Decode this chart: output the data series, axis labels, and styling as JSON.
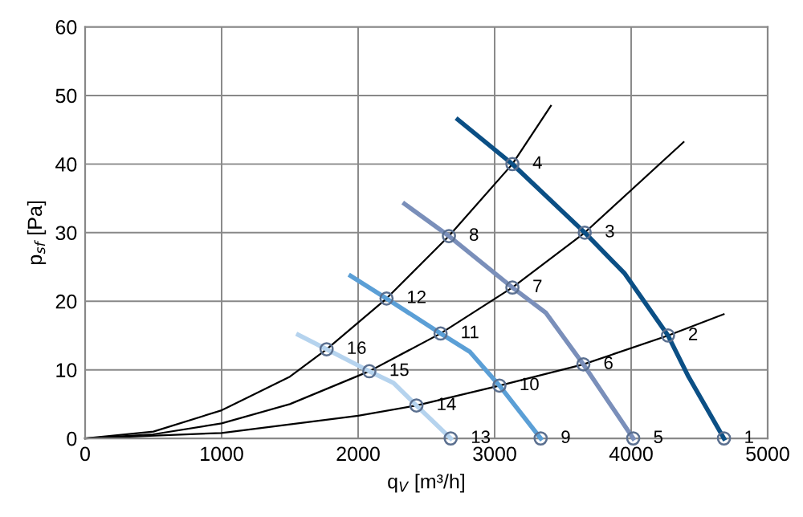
{
  "chart_data": {
    "type": "line",
    "xlabel": "q$_{V}$ [m³/h]",
    "ylabel": "p$_{sf}$ [Pa]",
    "xlim": [
      0,
      5000
    ],
    "xticks": [
      0,
      1000,
      2000,
      3000,
      4000,
      5000
    ],
    "ylim": [
      0,
      60
    ],
    "yticks": [
      0,
      10,
      20,
      30,
      40,
      50,
      60
    ],
    "grid": true,
    "legend": false,
    "series": [
      {
        "color": "#000000",
        "marker": "none",
        "x": [
          0,
          500,
          1000,
          1500,
          1769,
          2208,
          2665,
          3130,
          3412
        ],
        "values": [
          0,
          1,
          4.1,
          9,
          13,
          20.4,
          29.5,
          40,
          48.5
        ]
      },
      {
        "color": "#000000",
        "marker": "none",
        "x": [
          0,
          500,
          1000,
          1500,
          2082,
          2604,
          3130,
          3660,
          4384
        ],
        "values": [
          0,
          0.6,
          2.2,
          5,
          9.8,
          15.3,
          22,
          30,
          43.2
        ]
      },
      {
        "color": "#000000",
        "marker": "none",
        "x": [
          0,
          1000,
          2000,
          2427,
          3035,
          3650,
          4270,
          4678
        ],
        "values": [
          0,
          0.8,
          3.3,
          4.8,
          7.7,
          10.8,
          15,
          18.1
        ]
      },
      {
        "color": "#0b4f85",
        "marker": "none",
        "x": [
          2730,
          3130,
          3660,
          3950,
          4270,
          4420,
          4680
        ],
        "values": [
          46.5,
          40,
          30,
          24.1,
          15,
          9,
          0
        ]
      },
      {
        "color": "#7a8fba",
        "marker": "none",
        "x": [
          2340,
          2665,
          3130,
          3376,
          3650,
          4015
        ],
        "values": [
          34.2,
          29.5,
          22,
          18.3,
          10.8,
          0
        ]
      },
      {
        "color": "#5b9fd6",
        "marker": "none",
        "x": [
          1945,
          2208,
          2604,
          2820,
          3035,
          3337
        ],
        "values": [
          23.7,
          20.4,
          15.3,
          12.6,
          7.7,
          0
        ]
      },
      {
        "color": "#b5d3ee",
        "marker": "none",
        "x": [
          1561,
          1769,
          2082,
          2259,
          2427,
          2678
        ],
        "values": [
          15.1,
          13,
          9.8,
          8.1,
          4.8,
          0
        ]
      },
      {
        "type": "scatter",
        "color": "#5a6f8f",
        "marker": "circle",
        "x": [
          4680,
          4270,
          3660,
          3130,
          4015,
          3650,
          3130,
          2665,
          3337,
          3035,
          2604,
          2208,
          2678,
          2427,
          2082,
          1769
        ],
        "values": [
          0,
          15,
          30,
          40,
          0,
          10.8,
          22,
          29.5,
          0,
          7.7,
          15.3,
          20.4,
          0,
          4.8,
          9.8,
          13
        ]
      }
    ],
    "annotations": [
      {
        "text": "1",
        "x": 4680,
        "y": 0
      },
      {
        "text": "2",
        "x": 4270,
        "y": 15
      },
      {
        "text": "3",
        "x": 3660,
        "y": 30
      },
      {
        "text": "4",
        "x": 3130,
        "y": 40
      },
      {
        "text": "5",
        "x": 4015,
        "y": 0
      },
      {
        "text": "6",
        "x": 3650,
        "y": 10.8
      },
      {
        "text": "7",
        "x": 3130,
        "y": 22
      },
      {
        "text": "8",
        "x": 2665,
        "y": 29.5
      },
      {
        "text": "9",
        "x": 3337,
        "y": 0
      },
      {
        "text": "10",
        "x": 3035,
        "y": 7.7
      },
      {
        "text": "11",
        "x": 2604,
        "y": 15.3
      },
      {
        "text": "12",
        "x": 2208,
        "y": 20.4
      },
      {
        "text": "13",
        "x": 2678,
        "y": 0
      },
      {
        "text": "14",
        "x": 2427,
        "y": 4.8
      },
      {
        "text": "15",
        "x": 2082,
        "y": 9.8
      },
      {
        "text": "16",
        "x": 1769,
        "y": 13
      }
    ]
  }
}
